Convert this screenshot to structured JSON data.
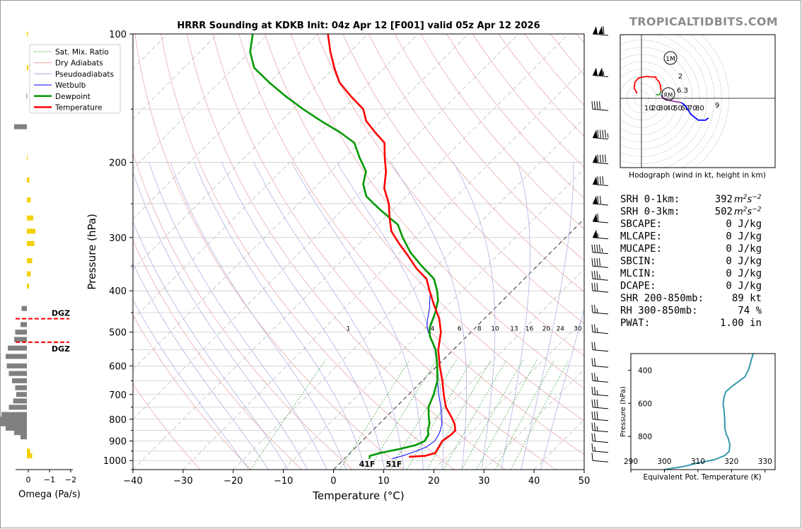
{
  "brand": "TROPICALTIDBITS.COM",
  "title": "HRRR Sounding at KDKB Init: 04z Apr 12 [F001] valid 05z Apr 12 2026",
  "colors": {
    "temperature": "#ff0000",
    "dewpoint": "#009900",
    "wetbulb": "#0000ff",
    "dry_adiabat": "#e8a0a0",
    "pseudo_adiabat": "#a8a8e0",
    "mixing_ratio": "#2ca02c",
    "dgz": "#ff0000",
    "omega_pos": "#f5d000",
    "omega_neg": "#808080",
    "theta_e": "#3399aa",
    "srh": "#9933aa",
    "shr": "#aa2222",
    "rh": "#008844"
  },
  "chart_data": [
    {
      "type": "line",
      "name": "skew-t",
      "xlabel": "Temperature (°C)",
      "ylabel": "Pressure (hPa)",
      "xlim": [
        -40,
        50
      ],
      "ylim": [
        1050,
        100
      ],
      "y_scale": "log",
      "xticks": [
        "−40",
        "−30",
        "−20",
        "−10",
        "0",
        "10",
        "20",
        "30",
        "40",
        "50"
      ],
      "yticks": [
        "100",
        "200",
        "300",
        "400",
        "500",
        "600",
        "700",
        "800",
        "900",
        "1000"
      ],
      "legend": {
        "position": "top-left",
        "entries": [
          "Sat. Mix. Ratio",
          "Dry Adiabats",
          "Pseudoadiabats",
          "Wetbulb",
          "Dewpoint",
          "Temperature"
        ]
      },
      "mixing_ratio_labels": [
        "1",
        "4",
        "6",
        "8",
        "10",
        "13",
        "16",
        "20",
        "24",
        "30",
        "36"
      ],
      "series": [
        {
          "name": "Temperature",
          "points": [
            [
              12.5,
              980
            ],
            [
              15.5,
              975
            ],
            [
              17,
              960
            ],
            [
              16.5,
              930
            ],
            [
              16,
              900
            ],
            [
              16.5,
              870
            ],
            [
              16.5,
              850
            ],
            [
              15,
              820
            ],
            [
              13,
              790
            ],
            [
              10,
              750
            ],
            [
              7,
              700
            ],
            [
              4,
              650
            ],
            [
              0.5,
              600
            ],
            [
              -3,
              550
            ],
            [
              -6,
              500
            ],
            [
              -9,
              465
            ],
            [
              -13,
              430
            ],
            [
              -16.5,
              400
            ],
            [
              -19.5,
              375
            ],
            [
              -23.5,
              355
            ],
            [
              -28,
              330
            ],
            [
              -32,
              310
            ],
            [
              -36,
              290
            ],
            [
              -39,
              270
            ],
            [
              -42,
              250
            ],
            [
              -46,
              230
            ],
            [
              -49,
              210
            ],
            [
              -52,
              195
            ],
            [
              -55,
              180
            ],
            [
              -59,
              170
            ],
            [
              -63,
              160
            ],
            [
              -66,
              150
            ],
            [
              -71,
              140
            ],
            [
              -76,
              130
            ],
            [
              -80,
              120
            ],
            [
              -84,
              110
            ],
            [
              -88,
              100
            ]
          ]
        },
        {
          "name": "Dewpoint",
          "points": [
            [
              5,
              990
            ],
            [
              4.5,
              975
            ],
            [
              6,
              960
            ],
            [
              9,
              940
            ],
            [
              11.5,
              920
            ],
            [
              12.5,
              900
            ],
            [
              12,
              870
            ],
            [
              11,
              850
            ],
            [
              10,
              820
            ],
            [
              8.5,
              790
            ],
            [
              6.5,
              750
            ],
            [
              5,
              700
            ],
            [
              3,
              650
            ],
            [
              0,
              600
            ],
            [
              -3.5,
              550
            ],
            [
              -7.5,
              510
            ],
            [
              -9,
              490
            ],
            [
              -10,
              470
            ],
            [
              -11,
              450
            ],
            [
              -13,
              420
            ],
            [
              -15,
              400
            ],
            [
              -18,
              375
            ],
            [
              -23,
              350
            ],
            [
              -28,
              325
            ],
            [
              -32.5,
              300
            ],
            [
              -36,
              280
            ],
            [
              -42,
              260
            ],
            [
              -45,
              250
            ],
            [
              -48,
              240
            ],
            [
              -51,
              225
            ],
            [
              -53,
              210
            ],
            [
              -57,
              195
            ],
            [
              -61,
              180
            ],
            [
              -66,
              170
            ],
            [
              -72,
              160
            ],
            [
              -78,
              150
            ],
            [
              -84,
              140
            ],
            [
              -90,
              130
            ],
            [
              -96,
              120
            ],
            [
              -100,
              110
            ],
            [
              -103,
              100
            ]
          ]
        },
        {
          "name": "Wetbulb",
          "points": [
            [
              9.5,
              990
            ],
            [
              11,
              975
            ],
            [
              12.5,
              955
            ],
            [
              14,
              930
            ],
            [
              14.5,
              900
            ],
            [
              14,
              870
            ],
            [
              13.5,
              850
            ],
            [
              12.5,
              820
            ],
            [
              11,
              790
            ],
            [
              9,
              750
            ],
            [
              6,
              700
            ],
            [
              3,
              650
            ],
            [
              0,
              600
            ],
            [
              -3.5,
              550
            ],
            [
              -7.5,
              510
            ],
            [
              -9.5,
              490
            ],
            [
              -11,
              470
            ],
            [
              -13,
              440
            ],
            [
              -15.5,
              410
            ]
          ]
        }
      ],
      "surface_labels": {
        "dewpoint": "41F",
        "temperature": "51F"
      }
    },
    {
      "type": "line",
      "name": "hodograph",
      "xlabel": "Hodograph (wind in kt, height in km)",
      "ring_labels": [
        "10",
        "20",
        "30",
        "40",
        "50",
        "60",
        "70",
        "80"
      ],
      "annotations": [
        "1M",
        "2",
        "6.3",
        "RM",
        "9"
      ],
      "series": [
        {
          "name": "0-1 km",
          "color": "#ff0000",
          "points": [
            [
              -6,
              7
            ],
            [
              -10,
              14
            ],
            [
              -9,
              22
            ],
            [
              -4,
              28
            ],
            [
              6,
              30
            ],
            [
              20,
              29
            ],
            [
              20,
              27
            ]
          ]
        },
        {
          "name": "1-3 km",
          "color": "#ff0000",
          "points": [
            [
              20,
              27
            ],
            [
              24,
              23
            ],
            [
              26,
              18
            ],
            [
              27,
              10
            ]
          ]
        },
        {
          "name": "3-6 km",
          "color": "#3aa33a",
          "points": [
            [
              27,
              10
            ],
            [
              25,
              5
            ],
            [
              20,
              5
            ]
          ]
        },
        {
          "name": "6-9 km",
          "color": "#9933aa",
          "points": [
            [
              27,
              4
            ],
            [
              30,
              0
            ],
            [
              36,
              -2
            ],
            [
              44,
              -4
            ],
            [
              50,
              -5
            ],
            [
              55,
              -6
            ]
          ]
        },
        {
          "name": "9+ km",
          "color": "#0000ff",
          "points": [
            [
              55,
              -6
            ],
            [
              60,
              -10
            ],
            [
              64,
              -16
            ],
            [
              68,
              -22
            ],
            [
              78,
              -30
            ],
            [
              88,
              -30
            ],
            [
              92,
              -27
            ]
          ]
        }
      ]
    },
    {
      "type": "line",
      "name": "theta-e",
      "xlabel": "Equivalent Pot. Temperature (K)",
      "ylabel": "Pressure (hPa)",
      "xlim": [
        290,
        333
      ],
      "ylim": [
        1000,
        300
      ],
      "xticks": [
        "290",
        "300",
        "310",
        "320",
        "330"
      ],
      "yticks": [
        "400",
        "600",
        "800"
      ],
      "series": [
        {
          "name": "Theta-E",
          "points": [
            [
              300,
              1000
            ],
            [
              306,
              980
            ],
            [
              310,
              960
            ],
            [
              315,
              940
            ],
            [
              318,
              915
            ],
            [
              319.3,
              890
            ],
            [
              319.5,
              850
            ],
            [
              319,
              810
            ],
            [
              318.5,
              790
            ],
            [
              318,
              750
            ],
            [
              318,
              700
            ],
            [
              317.8,
              650
            ],
            [
              317.5,
              600
            ],
            [
              317.8,
              560
            ],
            [
              318.3,
              530
            ],
            [
              320,
              500
            ],
            [
              322,
              470
            ],
            [
              324,
              440
            ],
            [
              325,
              400
            ],
            [
              325.5,
              370
            ],
            [
              326,
              330
            ],
            [
              326.5,
              300
            ]
          ]
        }
      ]
    },
    {
      "type": "bar",
      "name": "omega",
      "xlabel": "Omega (Pa/s)",
      "xticks": [
        "0",
        "−1",
        "−2"
      ],
      "dgz_label": "DGZ",
      "dgz_levels": [
        465,
        528
      ],
      "values": [
        [
          100,
          -0.05
        ],
        [
          120,
          -0.07
        ],
        [
          140,
          0.02
        ],
        [
          165,
          0.6
        ],
        [
          195,
          -0.03
        ],
        [
          220,
          -0.12
        ],
        [
          245,
          -0.18
        ],
        [
          270,
          -0.3
        ],
        [
          290,
          -0.4
        ],
        [
          310,
          -0.35
        ],
        [
          340,
          -0.25
        ],
        [
          365,
          -0.18
        ],
        [
          390,
          -0.1
        ],
        [
          440,
          0.25
        ],
        [
          480,
          0.3
        ],
        [
          500,
          0.55
        ],
        [
          520,
          0.6
        ],
        [
          545,
          0.9
        ],
        [
          570,
          1.0
        ],
        [
          600,
          0.95
        ],
        [
          625,
          0.85
        ],
        [
          650,
          0.7
        ],
        [
          675,
          0.55
        ],
        [
          700,
          0.5
        ],
        [
          725,
          0.65
        ],
        [
          750,
          0.85
        ],
        [
          780,
          1.2
        ],
        [
          800,
          1.5
        ],
        [
          820,
          1.4
        ],
        [
          840,
          1.0
        ],
        [
          860,
          0.6
        ],
        [
          880,
          0.3
        ],
        [
          950,
          -0.15
        ],
        [
          975,
          -0.25
        ]
      ]
    }
  ],
  "wind_barbs": [
    {
      "p": 100,
      "kt": 110
    },
    {
      "p": 125,
      "kt": 105
    },
    {
      "p": 150,
      "kt": 40
    },
    {
      "p": 175,
      "kt": 95
    },
    {
      "p": 200,
      "kt": 90
    },
    {
      "p": 225,
      "kt": 80
    },
    {
      "p": 250,
      "kt": 70
    },
    {
      "p": 275,
      "kt": 60
    },
    {
      "p": 300,
      "kt": 55
    },
    {
      "p": 325,
      "kt": 45
    },
    {
      "p": 350,
      "kt": 40
    },
    {
      "p": 375,
      "kt": 35
    },
    {
      "p": 400,
      "kt": 30
    },
    {
      "p": 450,
      "kt": 25
    },
    {
      "p": 500,
      "kt": 25
    },
    {
      "p": 550,
      "kt": 20
    },
    {
      "p": 600,
      "kt": 20
    },
    {
      "p": 650,
      "kt": 25
    },
    {
      "p": 700,
      "kt": 25
    },
    {
      "p": 750,
      "kt": 30
    },
    {
      "p": 800,
      "kt": 30
    },
    {
      "p": 850,
      "kt": 25
    },
    {
      "p": 900,
      "kt": 20
    },
    {
      "p": 950,
      "kt": 15
    },
    {
      "p": 1000,
      "kt": 10
    }
  ],
  "stats": [
    {
      "label": "SRH 0-1km:",
      "value": "392",
      "unit": "m2s-2",
      "color": "#9933aa"
    },
    {
      "label": "SRH 0-3km:",
      "value": "502",
      "unit": "m2s-2",
      "color": "#9933aa"
    },
    {
      "label": "SBCAPE:",
      "value": "0 J/kg",
      "color": "#000000"
    },
    {
      "label": "MLCAPE:",
      "value": "0 J/kg",
      "color": "#000000"
    },
    {
      "label": "MUCAPE:",
      "value": "0 J/kg",
      "color": "#000000"
    },
    {
      "label": "SBCIN:",
      "value": "0 J/kg",
      "color": "#000000"
    },
    {
      "label": "MLCIN:",
      "value": "0 J/kg",
      "color": "#000000"
    },
    {
      "label": "DCAPE:",
      "value": "0 J/kg",
      "color": "#000000"
    },
    {
      "label": "SHR 200-850mb:",
      "value": "89 kt",
      "color": "#aa2222"
    },
    {
      "label": "RH 300-850mb:",
      "value": "74 %",
      "color": "#008844"
    },
    {
      "label": "PWAT:",
      "value": "1.00 in",
      "color": "#000000"
    }
  ]
}
